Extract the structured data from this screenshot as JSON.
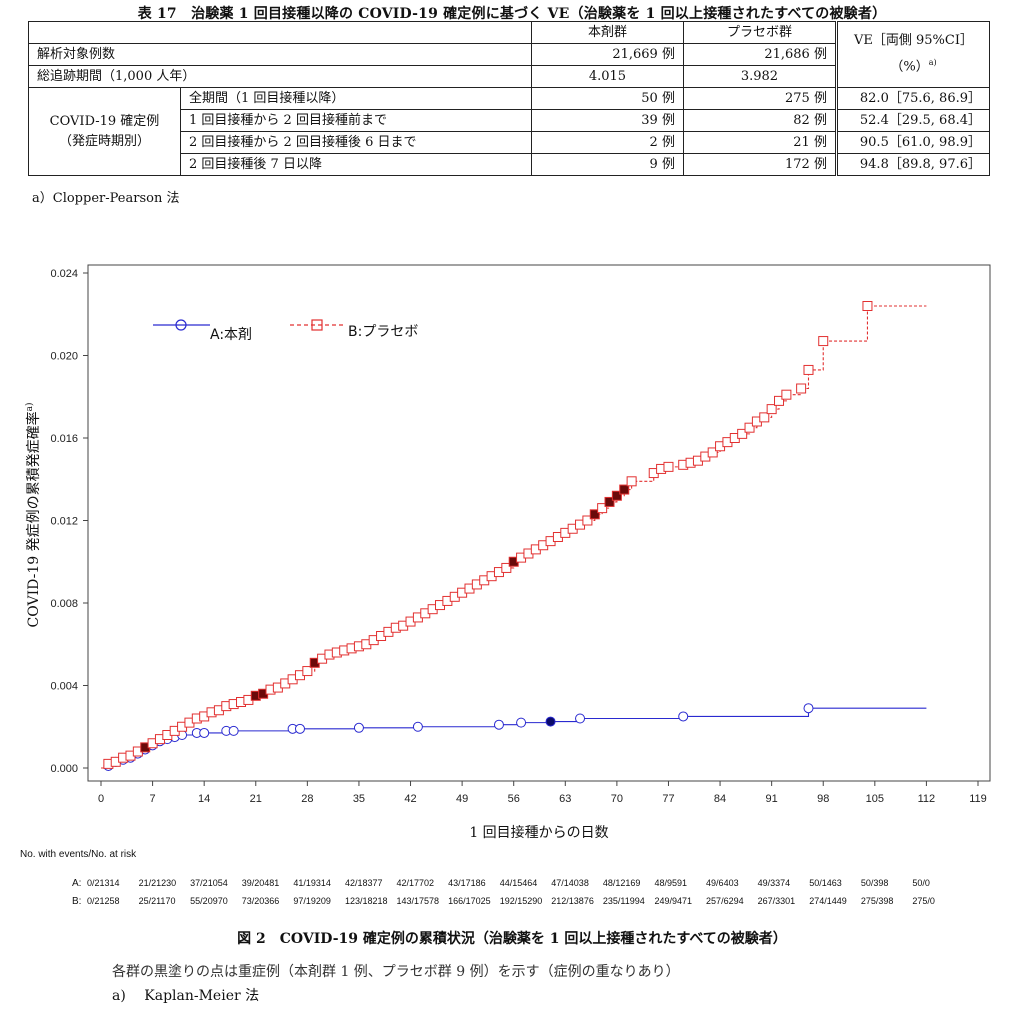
{
  "table17": {
    "title": "表 17　治験薬 1 回目接種以降の COVID-19 確定例に基づく VE（治験薬を 1 回以上接種されたすべての被験者）",
    "headers": {
      "drug": "本剤群",
      "placebo": "プラセボ群",
      "ve": "VE［両側 95%CI］",
      "ve_unit": "（%）",
      "ve_sup": "a)"
    },
    "rows": {
      "analysis_n": {
        "label": "解析対象例数",
        "drug": "21,669 例",
        "placebo": "21,686 例"
      },
      "followup": {
        "label": "総追跡期間（1,000 人年）",
        "drug": "4.015",
        "placebo": "3.982"
      }
    },
    "group_label_1": "COVID-19 確定例",
    "group_label_2": "（発症時期別）",
    "period_rows": [
      {
        "label": "全期間（1 回目接種以降）",
        "drug": "50 例",
        "placebo": "275 例",
        "ve": "82.0［75.6, 86.9］"
      },
      {
        "label": "1 回目接種から 2 回目接種前まで",
        "drug": "39 例",
        "placebo": "82 例",
        "ve": "52.4［29.5, 68.4］"
      },
      {
        "label": "2 回目接種から 2 回目接種後 6 日まで",
        "drug": "2 例",
        "placebo": "21 例",
        "ve": "90.5［61.0, 98.9］"
      },
      {
        "label": "2 回目接種後 7 日以降",
        "drug": "9 例",
        "placebo": "172 例",
        "ve": "94.8［89.8, 97.6］"
      }
    ],
    "footnote": "a）Clopper-Pearson 法"
  },
  "chart_data": {
    "type": "line",
    "title": "",
    "xlabel": "1 回目接種からの日数",
    "ylabel": "COVID-19 発症例の累積発症確率",
    "ylabel_sup": "a)",
    "xlim": [
      0,
      119
    ],
    "ylim": [
      0,
      0.024
    ],
    "x_ticks": [
      0,
      7,
      14,
      21,
      28,
      35,
      42,
      49,
      56,
      63,
      70,
      77,
      84,
      91,
      98,
      105,
      112,
      119
    ],
    "y_ticks": [
      "0.000",
      "0.004",
      "0.008",
      "0.012",
      "0.016",
      "0.020",
      "0.024"
    ],
    "grid": false,
    "legend_position": "top-left",
    "series": [
      {
        "name": "A:本剤",
        "color": "#2a2ad0",
        "marker": "circle",
        "end_x": 112,
        "points": [
          [
            0,
            0
          ],
          [
            1,
            0.0001
          ],
          [
            2,
            0.0003
          ],
          [
            3,
            0.0004
          ],
          [
            4,
            0.0005
          ],
          [
            5,
            0.0007
          ],
          [
            6,
            0.0009
          ],
          [
            7,
            0.0011
          ],
          [
            8,
            0.0013
          ],
          [
            9,
            0.0014
          ],
          [
            10,
            0.0015
          ],
          [
            11,
            0.0016
          ],
          [
            13,
            0.0017
          ],
          [
            14,
            0.0017
          ],
          [
            17,
            0.0018
          ],
          [
            18,
            0.0018
          ],
          [
            26,
            0.0019
          ],
          [
            27,
            0.0019
          ],
          [
            35,
            0.00195
          ],
          [
            43,
            0.002
          ],
          [
            54,
            0.0021
          ],
          [
            57,
            0.0022
          ],
          [
            61,
            0.00225
          ],
          [
            65,
            0.0024
          ],
          [
            79,
            0.0025
          ],
          [
            96,
            0.0029
          ]
        ],
        "filled_x": [
          61
        ]
      },
      {
        "name": "B:プラセボ",
        "color": "#e23030",
        "marker": "square",
        "end_x": 112,
        "points": [
          [
            0,
            0
          ],
          [
            1,
            0.0002
          ],
          [
            2,
            0.0003
          ],
          [
            3,
            0.0005
          ],
          [
            4,
            0.0006
          ],
          [
            5,
            0.0008
          ],
          [
            6,
            0.001
          ],
          [
            7,
            0.0012
          ],
          [
            8,
            0.0014
          ],
          [
            9,
            0.0016
          ],
          [
            10,
            0.0018
          ],
          [
            11,
            0.002
          ],
          [
            12,
            0.0022
          ],
          [
            13,
            0.0024
          ],
          [
            14,
            0.0025
          ],
          [
            15,
            0.0027
          ],
          [
            16,
            0.0028
          ],
          [
            17,
            0.003
          ],
          [
            18,
            0.0031
          ],
          [
            19,
            0.0032
          ],
          [
            20,
            0.0033
          ],
          [
            21,
            0.0035
          ],
          [
            22,
            0.0036
          ],
          [
            23,
            0.0038
          ],
          [
            24,
            0.0039
          ],
          [
            25,
            0.0041
          ],
          [
            26,
            0.0043
          ],
          [
            27,
            0.0045
          ],
          [
            28,
            0.0047
          ],
          [
            29,
            0.0051
          ],
          [
            30,
            0.0053
          ],
          [
            31,
            0.0055
          ],
          [
            32,
            0.0056
          ],
          [
            33,
            0.0057
          ],
          [
            34,
            0.0058
          ],
          [
            35,
            0.0059
          ],
          [
            36,
            0.006
          ],
          [
            37,
            0.0062
          ],
          [
            38,
            0.0064
          ],
          [
            39,
            0.0066
          ],
          [
            40,
            0.0068
          ],
          [
            41,
            0.0069
          ],
          [
            42,
            0.0071
          ],
          [
            43,
            0.0073
          ],
          [
            44,
            0.0075
          ],
          [
            45,
            0.0077
          ],
          [
            46,
            0.0079
          ],
          [
            47,
            0.0081
          ],
          [
            48,
            0.0083
          ],
          [
            49,
            0.0085
          ],
          [
            50,
            0.0087
          ],
          [
            51,
            0.0089
          ],
          [
            52,
            0.0091
          ],
          [
            53,
            0.0093
          ],
          [
            54,
            0.0095
          ],
          [
            55,
            0.0097
          ],
          [
            56,
            0.01
          ],
          [
            57,
            0.0102
          ],
          [
            58,
            0.0104
          ],
          [
            59,
            0.0106
          ],
          [
            60,
            0.0108
          ],
          [
            61,
            0.011
          ],
          [
            62,
            0.0112
          ],
          [
            63,
            0.0114
          ],
          [
            64,
            0.0116
          ],
          [
            65,
            0.0118
          ],
          [
            66,
            0.012
          ],
          [
            67,
            0.0123
          ],
          [
            68,
            0.0126
          ],
          [
            69,
            0.0129
          ],
          [
            70,
            0.0132
          ],
          [
            71,
            0.0135
          ],
          [
            72,
            0.0139
          ],
          [
            75,
            0.0143
          ],
          [
            76,
            0.0145
          ],
          [
            77,
            0.0146
          ],
          [
            79,
            0.0147
          ],
          [
            80,
            0.0148
          ],
          [
            81,
            0.0149
          ],
          [
            82,
            0.0151
          ],
          [
            83,
            0.0153
          ],
          [
            84,
            0.0156
          ],
          [
            85,
            0.0158
          ],
          [
            86,
            0.016
          ],
          [
            87,
            0.0162
          ],
          [
            88,
            0.0165
          ],
          [
            89,
            0.0168
          ],
          [
            90,
            0.017
          ],
          [
            91,
            0.0174
          ],
          [
            92,
            0.0178
          ],
          [
            93,
            0.0181
          ],
          [
            95,
            0.0184
          ],
          [
            96,
            0.0193
          ],
          [
            98,
            0.0207
          ],
          [
            104,
            0.0224
          ]
        ],
        "filled_x": [
          6,
          21,
          22,
          29,
          56,
          67,
          69,
          70,
          71
        ]
      }
    ]
  },
  "risk_table": {
    "header": "No. with events/No. at risk",
    "rows": [
      {
        "label": "A:",
        "values": [
          "0/21314",
          "21/21230",
          "37/21054",
          "39/20481",
          "41/19314",
          "42/18377",
          "42/17702",
          "43/17186",
          "44/15464",
          "47/14038",
          "48/12169",
          "48/9591",
          "49/6403",
          "49/3374",
          "50/1463",
          "50/398",
          "50/0"
        ]
      },
      {
        "label": "B:",
        "values": [
          "0/21258",
          "25/21170",
          "55/20970",
          "73/20366",
          "97/19209",
          "123/18218",
          "143/17578",
          "166/17025",
          "192/15290",
          "212/13876",
          "235/11994",
          "249/9471",
          "257/6294",
          "267/3301",
          "274/1449",
          "275/398",
          "275/0"
        ]
      }
    ]
  },
  "figure2": {
    "caption": "図 2　COVID-19 確定例の累積状況（治験薬を 1 回以上接種されたすべての被験者）",
    "note": "各群の黒塗りの点は重症例（本剤群 1 例、プラセボ群 9 例）を示す（症例の重なりあり）",
    "footnote": "a)　 Kaplan-Meier 法"
  }
}
